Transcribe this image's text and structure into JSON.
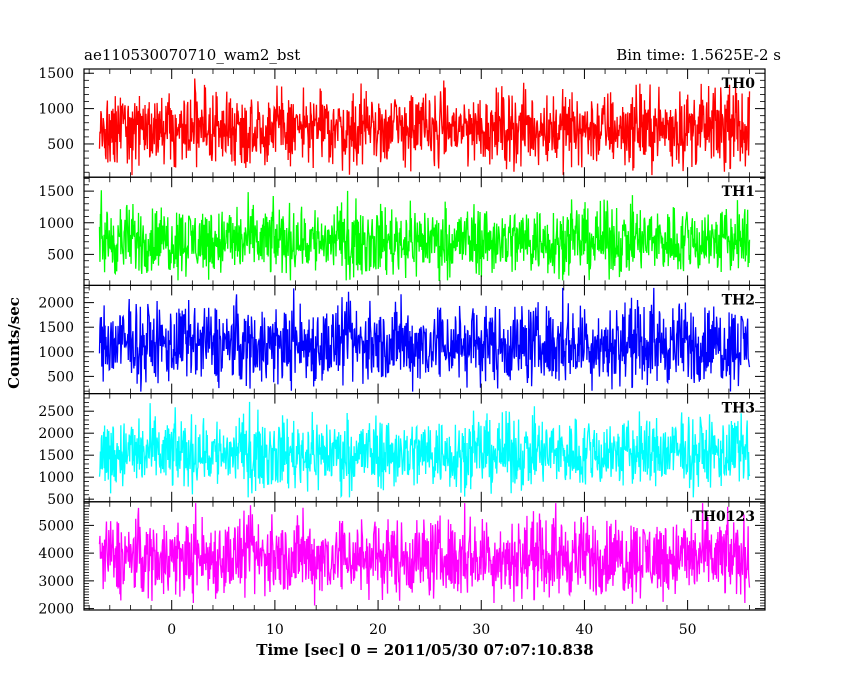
{
  "header": {
    "title": "ae110530070710_wam2_bst",
    "bin_time": "Bin time: 1.5625E-2 s"
  },
  "chart_data": {
    "type": "line",
    "xlabel": "Time [sec] 0 = 2011/05/30 07:07:10.838",
    "ylabel": "Counts/sec",
    "xlim": [
      -8.5,
      57.5
    ],
    "x_ticks": [
      0,
      10,
      20,
      30,
      40,
      50
    ],
    "x_range": [
      -7.0,
      56.0
    ],
    "grid": false,
    "panels": [
      {
        "name": "TH0",
        "color": "#ff0000",
        "ylim": [
          30,
          1560
        ],
        "yticks": [
          500,
          1000,
          1500
        ],
        "mean": 720,
        "spread": 260,
        "peak": 1560,
        "floor": 60
      },
      {
        "name": "TH1",
        "color": "#00ff00",
        "ylim": [
          10,
          1720
        ],
        "yticks": [
          500,
          1000,
          1500
        ],
        "mean": 720,
        "spread": 270,
        "peak": 1700,
        "floor": 90
      },
      {
        "name": "TH2",
        "color": "#0000ff",
        "ylim": [
          150,
          2350
        ],
        "yticks": [
          500,
          1000,
          1500,
          2000
        ],
        "mean": 1150,
        "spread": 400,
        "peak": 2300,
        "floor": 190
      },
      {
        "name": "TH3",
        "color": "#00ffff",
        "ylim": [
          440,
          2900
        ],
        "yticks": [
          500,
          1000,
          1500,
          2000,
          2500
        ],
        "mean": 1550,
        "spread": 400,
        "peak": 2880,
        "floor": 540
      },
      {
        "name": "TH0123",
        "color": "#ff00ff",
        "ylim": [
          1950,
          5850
        ],
        "yticks": [
          2000,
          3000,
          4000,
          5000
        ],
        "mean": 3850,
        "spread": 700,
        "peak": 5800,
        "floor": 2000
      }
    ]
  }
}
